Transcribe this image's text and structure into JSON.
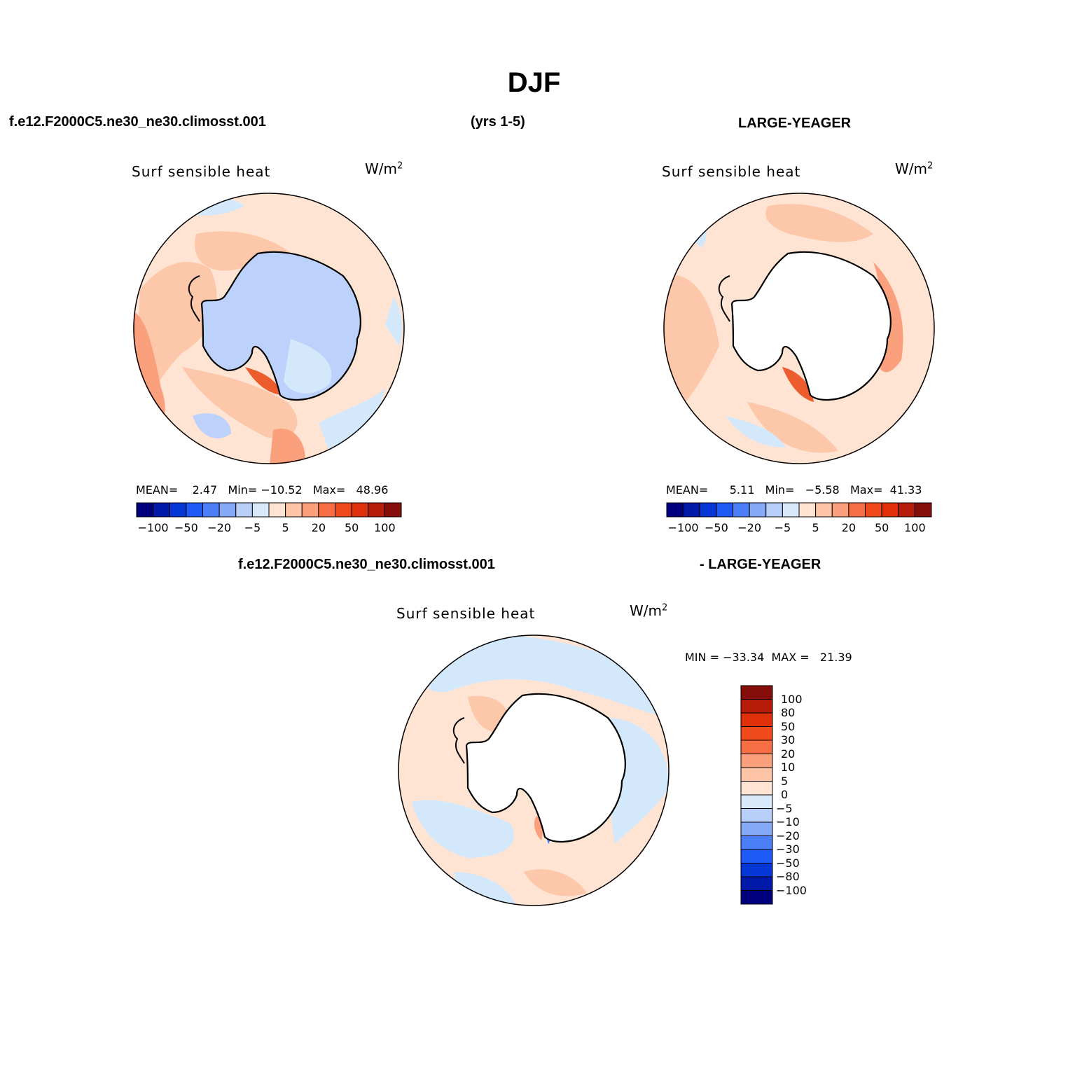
{
  "page_title": "DJF",
  "header": {
    "case_name": "f.e12.F2000C5.ne30_ne30.climosst.001",
    "years": "(yrs 1-5)",
    "obs_name": "LARGE-YEAGER"
  },
  "diff_header": {
    "case_name": "f.e12.F2000C5.ne30_ne30.climosst.001",
    "obs_name": "- LARGE-YEAGER"
  },
  "colors": {
    "ocean_neutral": "#ffe4d4",
    "light_blue": "#d4e8fc",
    "mid_blue": "#bcd1fb",
    "light_red": "#fdc7a9",
    "mid_red": "#fba07d",
    "strong_red": "#ed5c2d",
    "land_white": "#ffffff"
  },
  "panels": [
    {
      "field_title": "Surf sensible heat",
      "units": "W/m",
      "units_power": "2",
      "stats": {
        "mean_label": "MEAN=",
        "mean": "2.47",
        "min_label": "Min=",
        "min": "−10.52",
        "max_label": "Max=",
        "max": "48.96"
      }
    },
    {
      "field_title": "Surf sensible heat",
      "units": "W/m",
      "units_power": "2",
      "stats": {
        "mean_label": "MEAN=",
        "mean": "5.11",
        "min_label": "Min=",
        "min": "−5.58",
        "max_label": "Max=",
        "max": "41.33"
      }
    },
    {
      "field_title": "Surf sensible heat",
      "units": "W/m",
      "units_power": "2",
      "stats_line": "MIN = −33.34  MAX =   21.39"
    }
  ],
  "horizontal_colorbar": {
    "colors": [
      "#00007f",
      "#0019a8",
      "#0537d6",
      "#1e5af5",
      "#4a7ff7",
      "#85a8f7",
      "#b8cffa",
      "#d8e9fc",
      "#ffe4d4",
      "#fdc5a6",
      "#fba07c",
      "#f86f45",
      "#f04a1c",
      "#e0300a",
      "#b71c0a",
      "#850d0a"
    ],
    "tick_labels": [
      "−100",
      "−50",
      "−20",
      "−5",
      "5",
      "20",
      "50",
      "100"
    ]
  },
  "vertical_colorbar": {
    "colors": [
      "#850d0a",
      "#b71c0a",
      "#e0300a",
      "#f04a1c",
      "#f86f45",
      "#fba07c",
      "#fdc5a6",
      "#ffe4d4",
      "#d8e9fc",
      "#b8cffa",
      "#85a8f7",
      "#4a7ff7",
      "#1e5af5",
      "#0537d6",
      "#0019a8",
      "#00007f"
    ],
    "tick_labels": [
      "100",
      "80",
      "50",
      "30",
      "20",
      "10",
      "5",
      "0",
      "−5",
      "−10",
      "−20",
      "−30",
      "−50",
      "−80",
      "−100"
    ]
  }
}
